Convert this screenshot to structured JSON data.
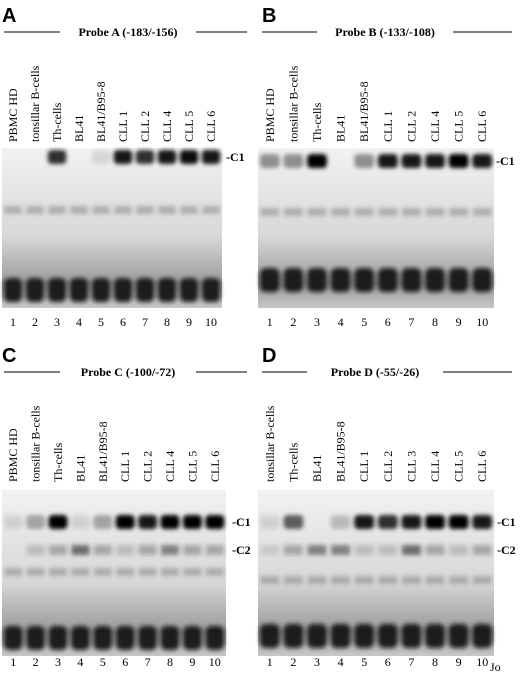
{
  "panels": [
    {
      "letter": "A",
      "probe": "Probe A (-183/-156)",
      "lanes": [
        "PBMC HD",
        "tonsillar B-cells",
        "Th-cells",
        "BL41",
        "BL41/B95-8",
        "CLL 1",
        "CLL 2",
        "CLL 4",
        "CLL 5",
        "CLL 6"
      ],
      "lane_numbers": [
        "1",
        "2",
        "3",
        "4",
        "5",
        "6",
        "7",
        "8",
        "9",
        "10"
      ],
      "bands": [
        "-C1"
      ]
    },
    {
      "letter": "B",
      "probe": "Probe B (-133/-108)",
      "lanes": [
        "PBMC HD",
        "tonsillar B-cells",
        "Th-cells",
        "BL41",
        "BL41/B95-8",
        "CLL 1",
        "CLL 2",
        "CLL 4",
        "CLL 5",
        "CLL 6"
      ],
      "lane_numbers": [
        "1",
        "2",
        "3",
        "4",
        "5",
        "6",
        "7",
        "8",
        "9",
        "10"
      ],
      "bands": [
        "-C1"
      ]
    },
    {
      "letter": "C",
      "probe": "Probe C (-100/-72)",
      "lanes": [
        "PBMC HD",
        "tonsillar B-cells",
        "Th-cells",
        "BL41",
        "BL41/B95-8",
        "CLL 1",
        "CLL 2",
        "CLL 4",
        "CLL 5",
        "CLL 6"
      ],
      "lane_numbers": [
        "1",
        "2",
        "3",
        "4",
        "5",
        "6",
        "7",
        "8",
        "9",
        "10"
      ],
      "bands": [
        "-C1",
        "-C2"
      ]
    },
    {
      "letter": "D",
      "probe": "Probe D (-55/-26)",
      "lanes": [
        "tonsillar B-cells",
        "Th-cells",
        "BL41",
        "BL41/B95-8",
        "CLL 1",
        "CLL 2",
        "CLL 3",
        "CLL 4",
        "CLL 5",
        "CLL 6"
      ],
      "lane_numbers": [
        "1",
        "2",
        "3",
        "4",
        "5",
        "6",
        "7",
        "8",
        "9",
        "10"
      ],
      "bands": [
        "-C1",
        "-C2"
      ]
    }
  ],
  "corner_text": "Jo"
}
